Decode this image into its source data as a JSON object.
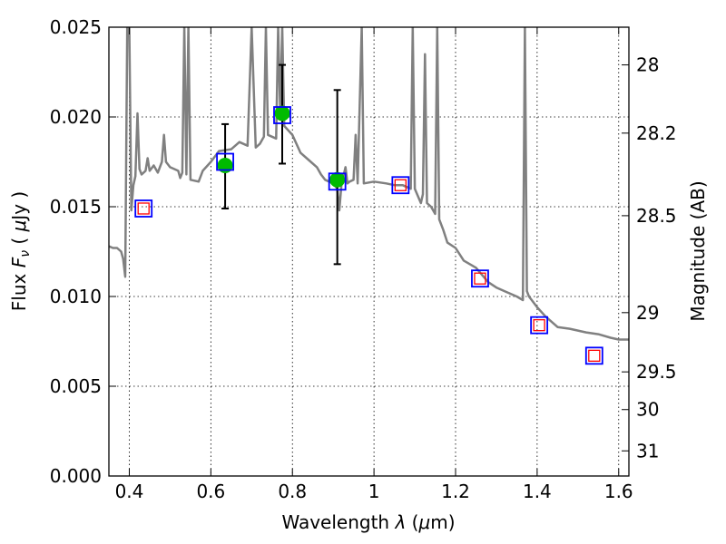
{
  "chart_data": {
    "type": "scatter",
    "title": "",
    "xlabel_prefix": "Wavelength  ",
    "xlabel_symbol": "λ",
    "xlabel_unit_open": " (",
    "xlabel_unit_symbol": "μ",
    "xlabel_unit_close": "m)",
    "ylabel_prefix": "Flux  ",
    "ylabel_symbol": "F",
    "ylabel_subscript": "ν",
    "ylabel_unit_open": "  ( ",
    "ylabel_unit_symbol": "μ",
    "ylabel_unit_close": "Jy )",
    "y2label": "Magnitude (AB)",
    "xlim": [
      0.35,
      1.625
    ],
    "ylim": [
      0.0,
      0.025
    ],
    "grid": true,
    "xticks": [
      {
        "value": 0.4,
        "label": "0.4"
      },
      {
        "value": 0.6,
        "label": "0.6"
      },
      {
        "value": 0.8,
        "label": "0.8"
      },
      {
        "value": 1.0,
        "label": "1"
      },
      {
        "value": 1.2,
        "label": "1.2"
      },
      {
        "value": 1.4,
        "label": "1.4"
      },
      {
        "value": 1.6,
        "label": "1.6"
      }
    ],
    "yticks": [
      {
        "value": 0.0,
        "label": "0.000"
      },
      {
        "value": 0.005,
        "label": "0.005"
      },
      {
        "value": 0.01,
        "label": "0.010"
      },
      {
        "value": 0.015,
        "label": "0.015"
      },
      {
        "value": 0.02,
        "label": "0.020"
      },
      {
        "value": 0.025,
        "label": "0.025"
      }
    ],
    "y2ticks": [
      {
        "flux": 0.0229,
        "label": "28"
      },
      {
        "flux": 0.0191,
        "label": "28.2"
      },
      {
        "flux": 0.0145,
        "label": "28.5"
      },
      {
        "flux": 0.0091,
        "label": "29"
      },
      {
        "flux": 0.0058,
        "label": "29.5"
      },
      {
        "flux": 0.0037,
        "label": "30"
      },
      {
        "flux": 0.0014,
        "label": "31"
      }
    ],
    "colors": {
      "model": "#808080",
      "observed": "#00bb00",
      "model_box": "#0000ff",
      "upper_box": "#ff0000",
      "errorbar": "#000000"
    },
    "series": [
      {
        "kind": "line",
        "points": [
          [
            0.35,
            0.0128
          ],
          [
            0.36,
            0.0127
          ],
          [
            0.37,
            0.0127
          ],
          [
            0.38,
            0.0125
          ],
          [
            0.385,
            0.0121
          ],
          [
            0.39,
            0.0111
          ],
          [
            0.395,
            0.025
          ],
          [
            0.4,
            0.025
          ],
          [
            0.405,
            0.0148
          ],
          [
            0.41,
            0.0162
          ],
          [
            0.415,
            0.0167
          ],
          [
            0.42,
            0.0202
          ],
          [
            0.425,
            0.0171
          ],
          [
            0.43,
            0.0168
          ],
          [
            0.44,
            0.017
          ],
          [
            0.445,
            0.0177
          ],
          [
            0.45,
            0.017
          ],
          [
            0.46,
            0.0173
          ],
          [
            0.47,
            0.0169
          ],
          [
            0.48,
            0.0175
          ],
          [
            0.485,
            0.019
          ],
          [
            0.49,
            0.0175
          ],
          [
            0.5,
            0.0172
          ],
          [
            0.51,
            0.0171
          ],
          [
            0.52,
            0.017
          ],
          [
            0.525,
            0.0166
          ],
          [
            0.53,
            0.0169
          ],
          [
            0.535,
            0.025
          ],
          [
            0.54,
            0.0168
          ],
          [
            0.545,
            0.025
          ],
          [
            0.55,
            0.0165
          ],
          [
            0.57,
            0.0164
          ],
          [
            0.58,
            0.017
          ],
          [
            0.6,
            0.0175
          ],
          [
            0.62,
            0.0181
          ],
          [
            0.65,
            0.0182
          ],
          [
            0.67,
            0.0186
          ],
          [
            0.69,
            0.0184
          ],
          [
            0.7,
            0.025
          ],
          [
            0.71,
            0.0183
          ],
          [
            0.72,
            0.0185
          ],
          [
            0.73,
            0.0189
          ],
          [
            0.735,
            0.025
          ],
          [
            0.74,
            0.019
          ],
          [
            0.76,
            0.0188
          ],
          [
            0.765,
            0.025
          ],
          [
            0.77,
            0.0202
          ],
          [
            0.775,
            0.025
          ],
          [
            0.78,
            0.0195
          ],
          [
            0.8,
            0.019
          ],
          [
            0.82,
            0.018
          ],
          [
            0.84,
            0.0176
          ],
          [
            0.86,
            0.0172
          ],
          [
            0.87,
            0.0168
          ],
          [
            0.88,
            0.0165
          ],
          [
            0.9,
            0.0163
          ],
          [
            0.91,
            0.016
          ],
          [
            0.915,
            0.0148
          ],
          [
            0.92,
            0.0162
          ],
          [
            0.93,
            0.0172
          ],
          [
            0.935,
            0.0163
          ],
          [
            0.94,
            0.0164
          ],
          [
            0.95,
            0.0165
          ],
          [
            0.955,
            0.019
          ],
          [
            0.96,
            0.0163
          ],
          [
            0.97,
            0.025
          ],
          [
            0.975,
            0.0163
          ],
          [
            1.0,
            0.0164
          ],
          [
            1.03,
            0.0163
          ],
          [
            1.05,
            0.0162
          ],
          [
            1.07,
            0.0162
          ],
          [
            1.09,
            0.016
          ],
          [
            1.095,
            0.025
          ],
          [
            1.1,
            0.016
          ],
          [
            1.115,
            0.0152
          ],
          [
            1.12,
            0.0157
          ],
          [
            1.125,
            0.0235
          ],
          [
            1.13,
            0.0152
          ],
          [
            1.14,
            0.015
          ],
          [
            1.15,
            0.0146
          ],
          [
            1.155,
            0.025
          ],
          [
            1.16,
            0.0143
          ],
          [
            1.17,
            0.0137
          ],
          [
            1.18,
            0.013
          ],
          [
            1.2,
            0.0127
          ],
          [
            1.22,
            0.012
          ],
          [
            1.25,
            0.0116
          ],
          [
            1.28,
            0.0108
          ],
          [
            1.3,
            0.0105
          ],
          [
            1.32,
            0.0103
          ],
          [
            1.35,
            0.01
          ],
          [
            1.365,
            0.0098
          ],
          [
            1.37,
            0.025
          ],
          [
            1.375,
            0.0103
          ],
          [
            1.38,
            0.01
          ],
          [
            1.4,
            0.0094
          ],
          [
            1.42,
            0.0089
          ],
          [
            1.45,
            0.0083
          ],
          [
            1.48,
            0.0082
          ],
          [
            1.5,
            0.0081
          ],
          [
            1.52,
            0.008
          ],
          [
            1.55,
            0.0079
          ],
          [
            1.58,
            0.0077
          ],
          [
            1.6,
            0.0076
          ],
          [
            1.625,
            0.0076
          ]
        ]
      },
      {
        "kind": "observed",
        "points": [
          {
            "x": 0.635,
            "y": 0.0173,
            "yerr_low": 0.0149,
            "yerr_high": 0.0196
          },
          {
            "x": 0.775,
            "y": 0.0202,
            "yerr_low": 0.0174,
            "yerr_high": 0.0229
          },
          {
            "x": 0.91,
            "y": 0.0165,
            "yerr_low": 0.0118,
            "yerr_high": 0.0215
          }
        ]
      },
      {
        "kind": "model_boxes",
        "points": [
          {
            "x": 0.435,
            "y": 0.0149
          },
          {
            "x": 0.635,
            "y": 0.0175
          },
          {
            "x": 0.775,
            "y": 0.0201
          },
          {
            "x": 0.91,
            "y": 0.0164
          },
          {
            "x": 1.065,
            "y": 0.0162
          },
          {
            "x": 1.26,
            "y": 0.011
          },
          {
            "x": 1.405,
            "y": 0.0084
          },
          {
            "x": 1.54,
            "y": 0.0067
          }
        ]
      },
      {
        "kind": "upper_boxes",
        "points": [
          {
            "x": 0.435,
            "y": 0.0149
          },
          {
            "x": 1.065,
            "y": 0.0162
          },
          {
            "x": 1.26,
            "y": 0.011
          },
          {
            "x": 1.405,
            "y": 0.0084
          },
          {
            "x": 1.54,
            "y": 0.0067
          }
        ]
      }
    ]
  }
}
